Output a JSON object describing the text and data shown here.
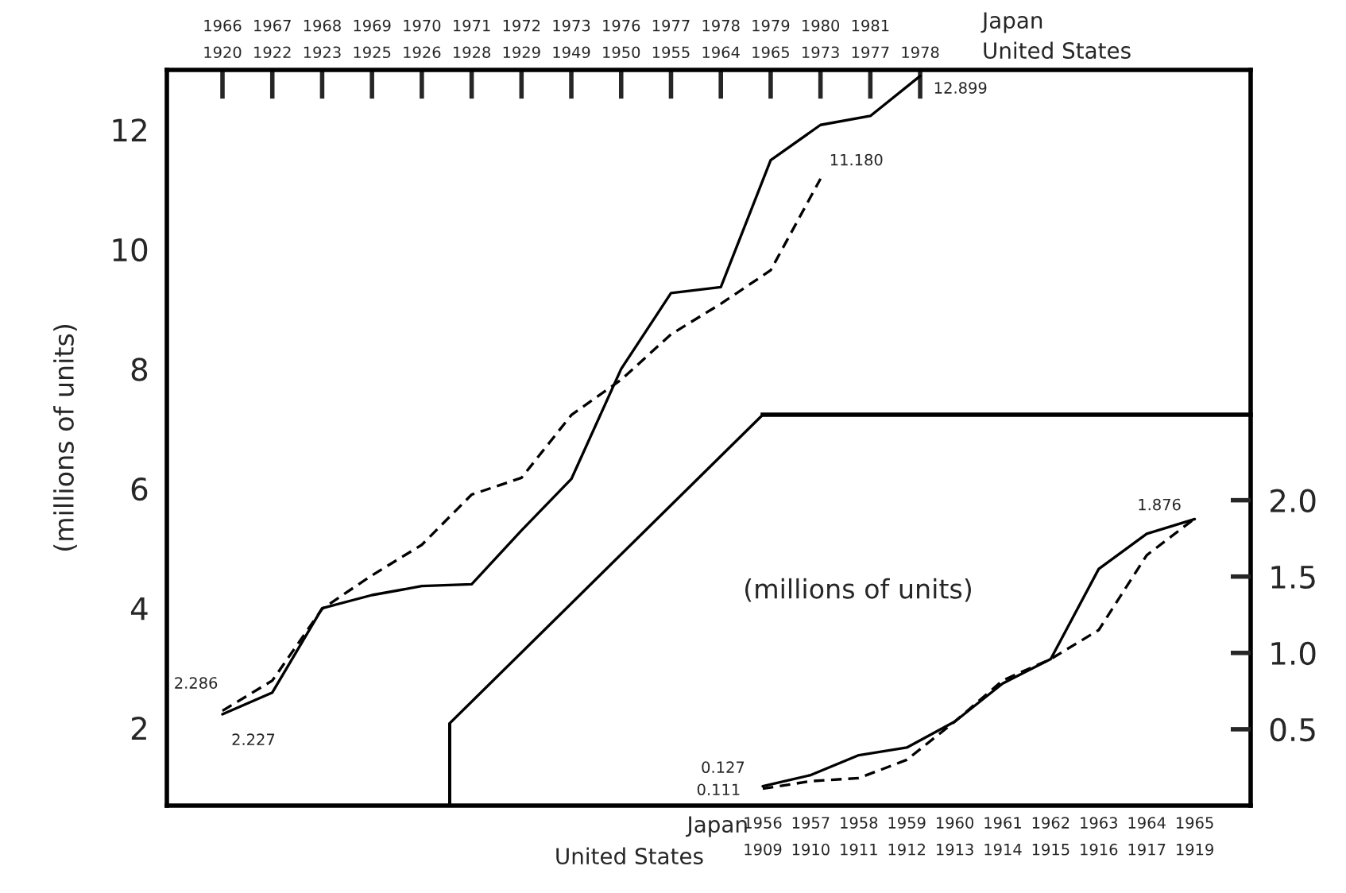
{
  "chart_data": [
    {
      "type": "line",
      "ylabel": "(millions of units)",
      "categories": [
        "1966\n1920",
        "1967\n1922",
        "1968\n1923",
        "1969\n1925",
        "1970\n1926",
        "1971\n1928",
        "1972\n1929",
        "1973\n1949",
        "1976\n1950",
        "1977\n1955",
        "1978\n1964",
        "1979\n1965",
        "1980\n1973",
        "1981\n1977",
        "\n1978"
      ],
      "series": [
        {
          "color": "#000000",
          "line_style": "solid",
          "values": [
            2.227,
            2.59,
            4.0,
            4.22,
            4.37,
            4.4,
            5.3,
            6.16,
            8.0,
            9.27,
            9.37,
            11.49,
            12.08,
            12.23,
            12.899
          ],
          "value_labels": [
            "2.227",
            null,
            null,
            null,
            null,
            null,
            null,
            null,
            null,
            null,
            null,
            null,
            null,
            null,
            "12.899"
          ]
        },
        {
          "color": "#000000",
          "line_style": "dashed",
          "values": [
            2.286,
            2.79,
            3.99,
            4.55,
            5.06,
            5.9,
            6.18,
            7.23,
            7.82,
            8.58,
            9.09,
            9.65,
            11.18,
            null,
            null
          ],
          "value_labels": [
            "2.286",
            null,
            null,
            null,
            null,
            null,
            null,
            null,
            null,
            null,
            null,
            null,
            "11.180",
            null,
            null
          ]
        }
      ],
      "ylim": [
        0.7,
        13.0
      ],
      "yticks": [
        2,
        4,
        6,
        8,
        10,
        12
      ],
      "annotations": [
        "Japan",
        "United States"
      ]
    },
    {
      "type": "line",
      "ylabel": "(millions of units)",
      "categories": [
        "1956\n1909",
        "1957\n1910",
        "1958\n1911",
        "1959\n1912",
        "1960\n1913",
        "1961\n1914",
        "1962\n1915",
        "1963\n1916",
        "1964\n1917",
        "1965\n1919"
      ],
      "series": [
        {
          "color": "#000000",
          "line_style": "solid",
          "values": [
            0.127,
            0.2,
            0.33,
            0.38,
            0.55,
            0.8,
            0.96,
            1.55,
            1.78,
            1.876
          ],
          "value_labels": [
            "0.127",
            null,
            null,
            null,
            null,
            null,
            null,
            null,
            null,
            "1.876"
          ]
        },
        {
          "color": "#000000",
          "line_style": "dashed",
          "values": [
            0.111,
            0.16,
            0.18,
            0.3,
            0.55,
            0.82,
            0.96,
            1.15,
            1.64,
            1.88
          ],
          "value_labels": [
            "0.111",
            null,
            null,
            null,
            null,
            null,
            null,
            null,
            null,
            null
          ]
        }
      ],
      "ylim": [
        0,
        2.56
      ],
      "yticks": [
        {
          "value": 0.5,
          "label": "0.5"
        },
        {
          "value": 1,
          "label": "1.0"
        },
        {
          "value": 1.5,
          "label": "1.5"
        },
        {
          "value": 2,
          "label": "2.0"
        }
      ],
      "annotations": [
        "Japan",
        "United States"
      ]
    }
  ]
}
